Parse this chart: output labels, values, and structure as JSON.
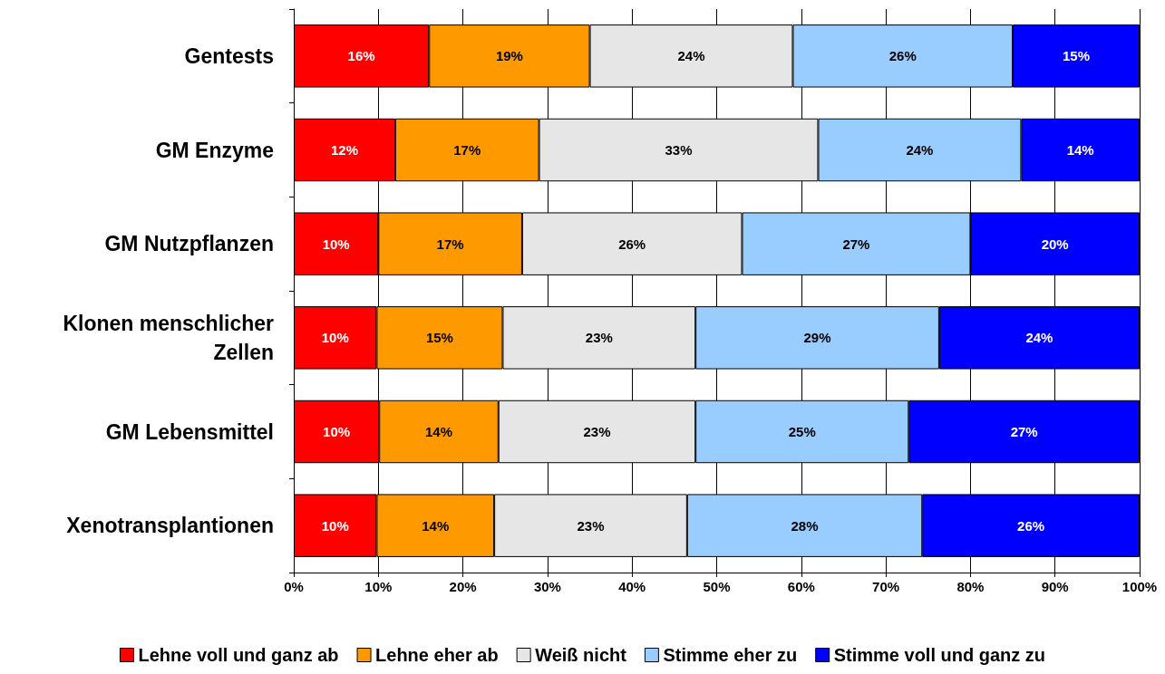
{
  "chart_data": {
    "type": "bar",
    "orientation": "horizontal",
    "stacked": true,
    "grid": "x",
    "legend": "bottom",
    "categories": [
      "Gentests",
      "GM Enzyme",
      "GM Nutzpflanzen",
      "Klonen menschlicher\nZellen",
      "GM Lebensmittel",
      "Xenotransplantionen"
    ],
    "xlim": [
      0,
      100
    ],
    "xticks": [
      {
        "value": 0,
        "label": "0%"
      },
      {
        "value": 10,
        "label": "10%"
      },
      {
        "value": 20,
        "label": "20%"
      },
      {
        "value": 30,
        "label": "30%"
      },
      {
        "value": 40,
        "label": "40%"
      },
      {
        "value": 50,
        "label": "50%"
      },
      {
        "value": 60,
        "label": "60%"
      },
      {
        "value": 70,
        "label": "70%"
      },
      {
        "value": 80,
        "label": "80%"
      },
      {
        "value": 90,
        "label": "90%"
      },
      {
        "value": 100,
        "label": "100%"
      }
    ],
    "series": [
      {
        "name": "Lehne voll und ganz ab",
        "color": "#ff0000",
        "values": [
          16,
          12,
          10,
          9.8,
          10.1,
          9.8
        ],
        "value_labels": [
          "16%",
          "12%",
          "10%",
          "10%",
          "10%",
          "10%"
        ]
      },
      {
        "name": "Lehne eher ab",
        "color": "#ff9900",
        "values": [
          19,
          17,
          17,
          14.9,
          14.1,
          13.9
        ],
        "value_labels": [
          "19%",
          "17%",
          "17%",
          "15%",
          "14%",
          "14%"
        ]
      },
      {
        "name": "Weiß nicht",
        "color": "#e6e6e6",
        "values": [
          24,
          33,
          26,
          22.8,
          23.3,
          22.8
        ],
        "value_labels": [
          "24%",
          "33%",
          "26%",
          "23%",
          "23%",
          "23%"
        ]
      },
      {
        "name": "Stimme eher zu",
        "color": "#99ccff",
        "values": [
          26,
          24,
          27,
          28.8,
          25.2,
          27.8
        ],
        "value_labels": [
          "26%",
          "24%",
          "27%",
          "29%",
          "25%",
          "28%"
        ]
      },
      {
        "name": "Stimme voll und ganz zu",
        "color": "#0000ff",
        "values": [
          15,
          14,
          20,
          23.7,
          27.3,
          25.7
        ],
        "value_labels": [
          "15%",
          "14%",
          "20%",
          "24%",
          "27%",
          "26%"
        ]
      }
    ]
  }
}
